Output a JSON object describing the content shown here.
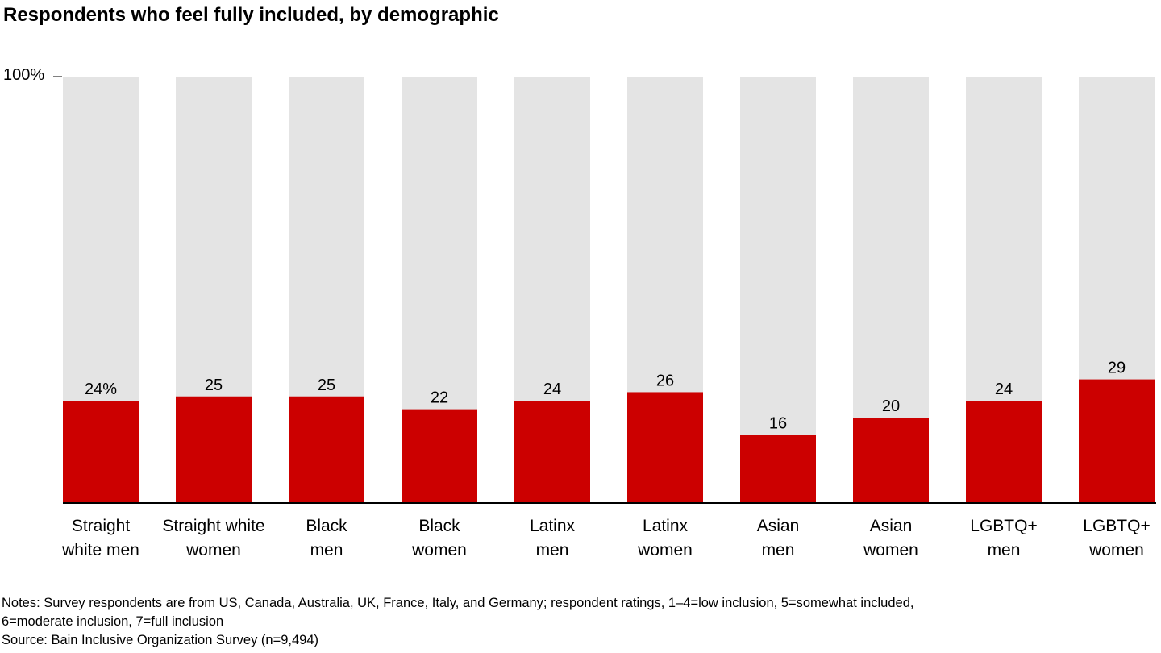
{
  "chart_data": {
    "type": "bar",
    "title": "Respondents who feel fully included, by demographic",
    "xlabel": "",
    "ylabel": "",
    "ylim": [
      0,
      100
    ],
    "y_tick_labels": [
      "100%"
    ],
    "grid": false,
    "categories": [
      [
        "Straight",
        "white men"
      ],
      [
        "Straight white",
        "women"
      ],
      [
        "Black",
        "men"
      ],
      [
        "Black",
        "women"
      ],
      [
        "Latinx",
        "men"
      ],
      [
        "Latinx",
        "women"
      ],
      [
        "Asian",
        "men"
      ],
      [
        "Asian",
        "women"
      ],
      [
        "LGBTQ+",
        "men"
      ],
      [
        "LGBTQ+",
        "women"
      ]
    ],
    "values": [
      24,
      25,
      25,
      22,
      24,
      26,
      16,
      20,
      24,
      29
    ],
    "data_labels": [
      "24%",
      "25",
      "25",
      "22",
      "24",
      "26",
      "16",
      "20",
      "24",
      "29"
    ],
    "background_value": 100,
    "colors": {
      "bar": "#cc0000",
      "background_bar": "#e4e4e4",
      "axis": "#000000"
    }
  },
  "notes": {
    "line1": "Notes: Survey respondents are from US, Canada, Australia, UK, France, Italy, and Germany; respondent ratings, 1–4=low inclusion, 5=somewhat included,",
    "line2": "6=moderate inclusion, 7=full inclusion",
    "source": "Source: Bain Inclusive Organization Survey (n=9,494)"
  }
}
